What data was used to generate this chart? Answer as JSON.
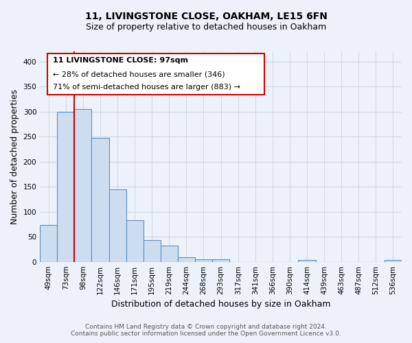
{
  "title_line1": "11, LIVINGSTONE CLOSE, OAKHAM, LE15 6FN",
  "title_line2": "Size of property relative to detached houses in Oakham",
  "xlabel": "Distribution of detached houses by size in Oakham",
  "ylabel": "Number of detached properties",
  "bar_labels": [
    "49sqm",
    "73sqm",
    "98sqm",
    "122sqm",
    "146sqm",
    "171sqm",
    "195sqm",
    "219sqm",
    "244sqm",
    "268sqm",
    "293sqm",
    "317sqm",
    "341sqm",
    "366sqm",
    "390sqm",
    "414sqm",
    "439sqm",
    "463sqm",
    "487sqm",
    "512sqm",
    "536sqm"
  ],
  "bar_values": [
    73,
    300,
    305,
    248,
    145,
    83,
    44,
    32,
    9,
    5,
    5,
    0,
    0,
    0,
    0,
    3,
    0,
    0,
    0,
    0,
    3
  ],
  "bar_color": "#ccddf0",
  "bar_edge_color": "#5b8ec4",
  "vline_color": "#cc0000",
  "annotation_line1": "11 LIVINGSTONE CLOSE: 97sqm",
  "annotation_line2": "← 28% of detached houses are smaller (346)",
  "annotation_line3": "71% of semi-detached houses are larger (883) →",
  "box_edge_color": "#cc0000",
  "ylim": [
    0,
    420
  ],
  "yticks": [
    0,
    50,
    100,
    150,
    200,
    250,
    300,
    350,
    400
  ],
  "footer1": "Contains HM Land Registry data © Crown copyright and database right 2024.",
  "footer2": "Contains public sector information licensed under the Open Government Licence v3.0.",
  "background_color": "#edf2fa",
  "grid_color": "#d0daea",
  "title_fontsize": 10,
  "subtitle_fontsize": 9,
  "axis_label_fontsize": 9,
  "tick_fontsize": 7.5,
  "annotation_fontsize": 8,
  "footer_fontsize": 6.5
}
